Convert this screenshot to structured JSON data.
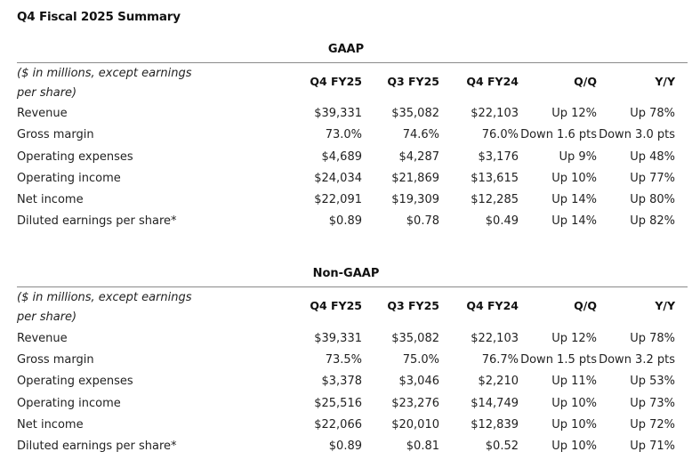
{
  "page_title": "Q4 Fiscal 2025 Summary",
  "sections": [
    {
      "heading": "GAAP",
      "units_note": "($ in millions, except earnings per share)",
      "columns": [
        "Q4 FY25",
        "Q3 FY25",
        "Q4 FY24",
        "Q/Q",
        "Y/Y"
      ],
      "rows": [
        {
          "label": "Revenue",
          "values": [
            "$39,331",
            "$35,082",
            "$22,103",
            "Up 12%",
            "Up 78%"
          ]
        },
        {
          "label": "Gross margin",
          "values": [
            "73.0%",
            "74.6%",
            "76.0%",
            "Down 1.6 pts",
            "Down 3.0 pts"
          ]
        },
        {
          "label": "Operating expenses",
          "values": [
            "$4,689",
            "$4,287",
            "$3,176",
            "Up 9%",
            "Up 48%"
          ]
        },
        {
          "label": "Operating income",
          "values": [
            "$24,034",
            "$21,869",
            "$13,615",
            "Up 10%",
            "Up 77%"
          ]
        },
        {
          "label": "Net income",
          "values": [
            "$22,091",
            "$19,309",
            "$12,285",
            "Up 14%",
            "Up 80%"
          ]
        },
        {
          "label": "Diluted earnings per share*",
          "values": [
            "$0.89",
            "$0.78",
            "$0.49",
            "Up 14%",
            "Up 82%"
          ]
        }
      ]
    },
    {
      "heading": "Non-GAAP",
      "units_note": "($ in millions, except earnings per share)",
      "columns": [
        "Q4 FY25",
        "Q3 FY25",
        "Q4 FY24",
        "Q/Q",
        "Y/Y"
      ],
      "rows": [
        {
          "label": "Revenue",
          "values": [
            "$39,331",
            "$35,082",
            "$22,103",
            "Up 12%",
            "Up 78%"
          ]
        },
        {
          "label": "Gross margin",
          "values": [
            "73.5%",
            "75.0%",
            "76.7%",
            "Down 1.5 pts",
            "Down 3.2 pts"
          ]
        },
        {
          "label": "Operating expenses",
          "values": [
            "$3,378",
            "$3,046",
            "$2,210",
            "Up 11%",
            "Up 53%"
          ]
        },
        {
          "label": "Operating income",
          "values": [
            "$25,516",
            "$23,276",
            "$14,749",
            "Up 10%",
            "Up 73%"
          ]
        },
        {
          "label": "Net income",
          "values": [
            "$22,066",
            "$20,010",
            "$12,839",
            "Up 10%",
            "Up 72%"
          ]
        },
        {
          "label": "Diluted earnings per share*",
          "values": [
            "$0.89",
            "$0.81",
            "$0.52",
            "Up 10%",
            "Up 71%"
          ]
        }
      ]
    }
  ]
}
